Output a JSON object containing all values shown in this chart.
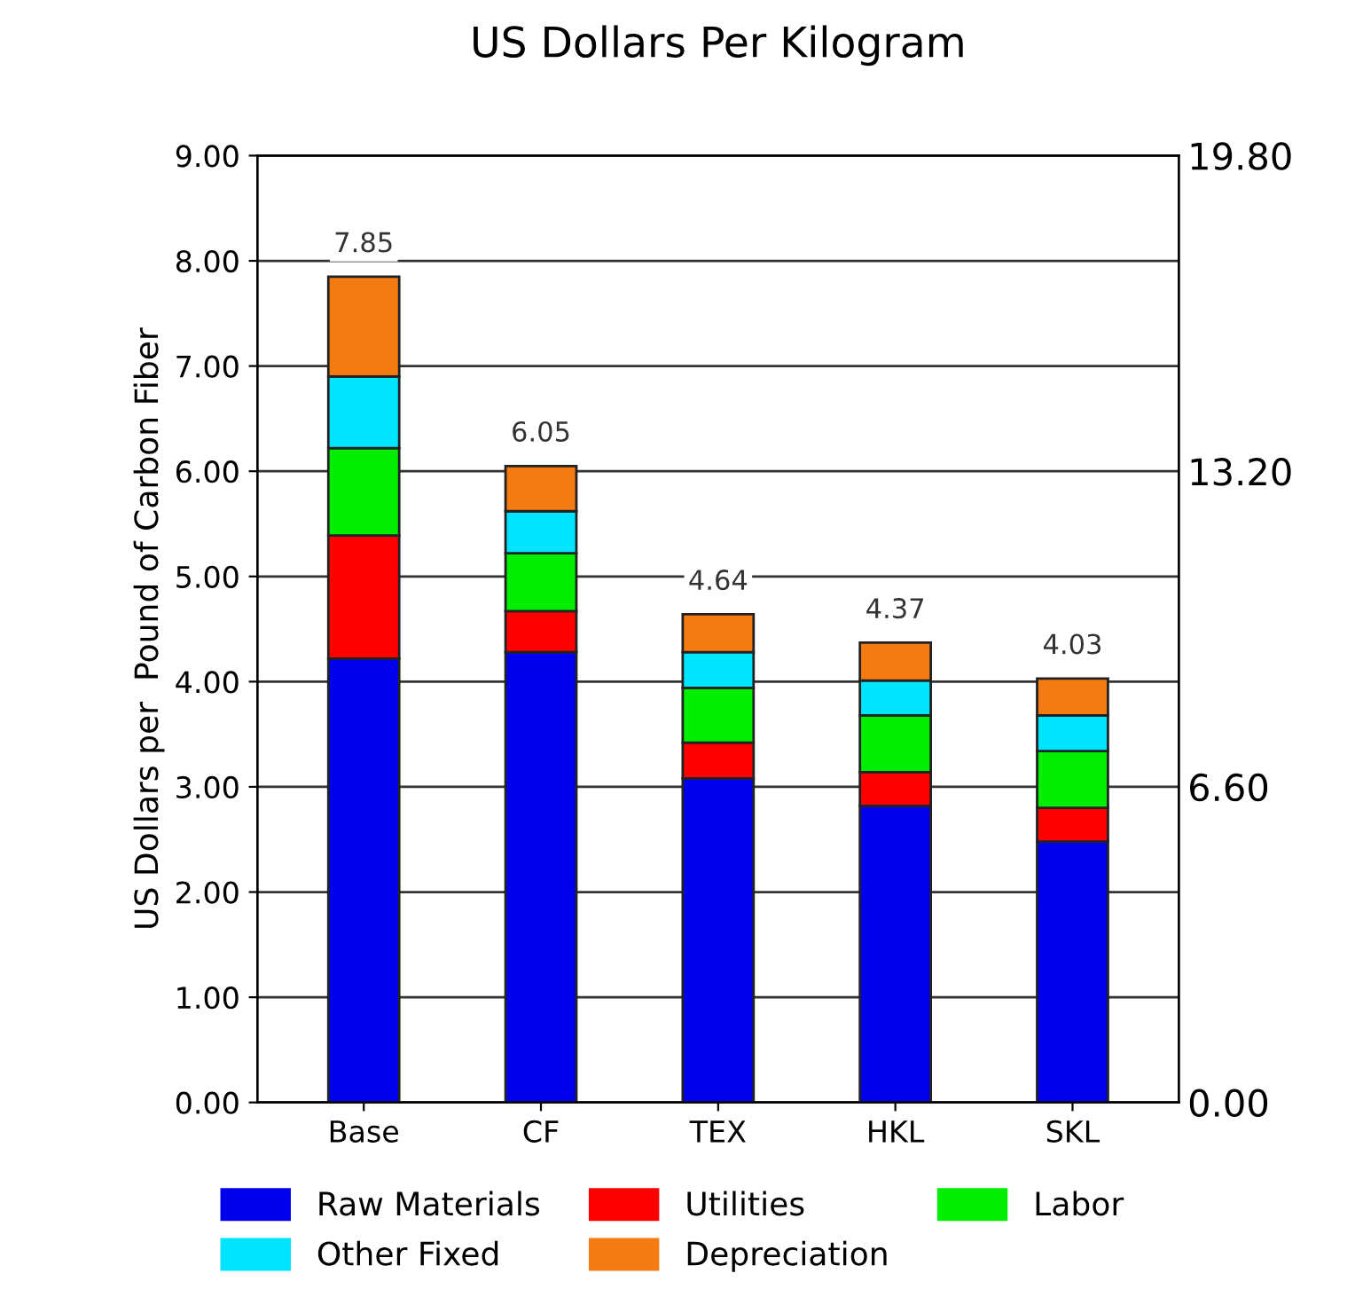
{
  "chart_data": {
    "type": "bar",
    "stacked": true,
    "title": "US Dollars Per Kilogram",
    "ylabel": "US Dollars per  Pound of Carbon Fiber",
    "categories": [
      "Base",
      "CF",
      "TEX",
      "HKL",
      "SKL"
    ],
    "series": [
      {
        "name": "Raw Materials",
        "color": "#0000ee",
        "values": [
          4.22,
          4.28,
          3.08,
          2.82,
          2.48
        ]
      },
      {
        "name": "Utilities",
        "color": "#ff0000",
        "values": [
          1.17,
          0.39,
          0.34,
          0.32,
          0.32
        ]
      },
      {
        "name": "Labor",
        "color": "#00ee00",
        "values": [
          0.83,
          0.55,
          0.52,
          0.54,
          0.54
        ]
      },
      {
        "name": "Other Fixed",
        "color": "#00e5ff",
        "values": [
          0.68,
          0.4,
          0.34,
          0.33,
          0.34
        ]
      },
      {
        "name": "Depreciation",
        "color": "#f57a10",
        "values": [
          0.95,
          0.43,
          0.36,
          0.36,
          0.35
        ]
      }
    ],
    "totals": [
      "7.85",
      "6.05",
      "4.64",
      "4.37",
      "4.03"
    ],
    "ylim": [
      0,
      9
    ],
    "yticks": [
      {
        "value": 0,
        "label": "0.00"
      },
      {
        "value": 1,
        "label": "1.00"
      },
      {
        "value": 2,
        "label": "2.00"
      },
      {
        "value": 3,
        "label": "3.00"
      },
      {
        "value": 4,
        "label": "4.00"
      },
      {
        "value": 5,
        "label": "5.00"
      },
      {
        "value": 6,
        "label": "6.00"
      },
      {
        "value": 7,
        "label": "7.00"
      },
      {
        "value": 8,
        "label": "8.00"
      },
      {
        "value": 9,
        "label": "9.00"
      }
    ],
    "y2lim": [
      0,
      19.8
    ],
    "y2ticks": [
      {
        "value": 0,
        "label": "0.00"
      },
      {
        "value": 6.6,
        "label": "6.60"
      },
      {
        "value": 13.2,
        "label": "13.20"
      },
      {
        "value": 19.8,
        "label": "19.80"
      }
    ],
    "grid": "y",
    "legend": "bottom"
  }
}
